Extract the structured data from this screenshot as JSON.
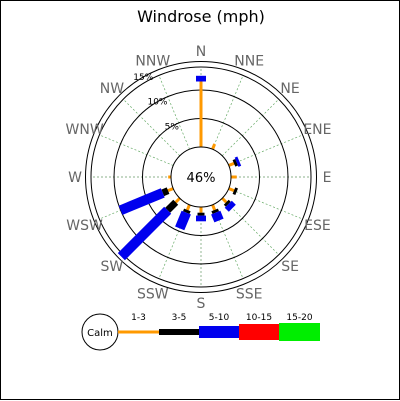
{
  "chart_data": {
    "type": "windrose",
    "title": "Windrose (mph)",
    "directions": [
      "N",
      "NNE",
      "NE",
      "ENE",
      "E",
      "ESE",
      "SE",
      "SSE",
      "S",
      "SSW",
      "SW",
      "WSW",
      "W",
      "WNW",
      "NW",
      "NNW"
    ],
    "ring_labels": [
      "5%",
      "10%",
      "15%"
    ],
    "ring_values": [
      5,
      10,
      15
    ],
    "calm_label": "46%",
    "calm_value": 46,
    "legend_calm": "Calm",
    "speed_bins": [
      {
        "label": "1-3",
        "color": "#ff9900"
      },
      {
        "label": "3-5",
        "color": "#000000"
      },
      {
        "label": "5-10",
        "color": "#0000ee"
      },
      {
        "label": "10-15",
        "color": "#ff0000"
      },
      {
        "label": "15-20",
        "color": "#00ee00"
      }
    ],
    "grid": true,
    "note": "percent of observations per direction by speed bin (cumulative segments from calm circle outward)",
    "segments": {
      "N": [
        11.5,
        0,
        1.0,
        0,
        0
      ],
      "NNE": [
        1.0,
        0,
        0,
        0,
        0
      ],
      "NE": [
        0,
        0,
        0,
        0,
        0
      ],
      "ENE": [
        1.0,
        0.5,
        0.5,
        0,
        0
      ],
      "E": [
        1.0,
        0,
        0,
        0,
        0
      ],
      "ESE": [
        1.0,
        0.5,
        0,
        0,
        0
      ],
      "SE": [
        1.0,
        0.5,
        1.0,
        0,
        0
      ],
      "SSE": [
        1.0,
        0.5,
        1.5,
        0,
        0
      ],
      "S": [
        1.0,
        0.5,
        1.0,
        0,
        0
      ],
      "SSW": [
        1.0,
        0.5,
        3.0,
        0,
        0
      ],
      "SW": [
        1.0,
        2.0,
        11.5,
        0,
        0
      ],
      "WSW": [
        1.0,
        1.0,
        8.0,
        0,
        0
      ],
      "W": [
        0.5,
        0,
        0,
        0,
        0
      ],
      "WNW": [
        0,
        0,
        0,
        0,
        0
      ],
      "NW": [
        0,
        0,
        0,
        0,
        0
      ],
      "NNW": [
        0,
        0,
        0,
        0,
        0
      ]
    }
  }
}
